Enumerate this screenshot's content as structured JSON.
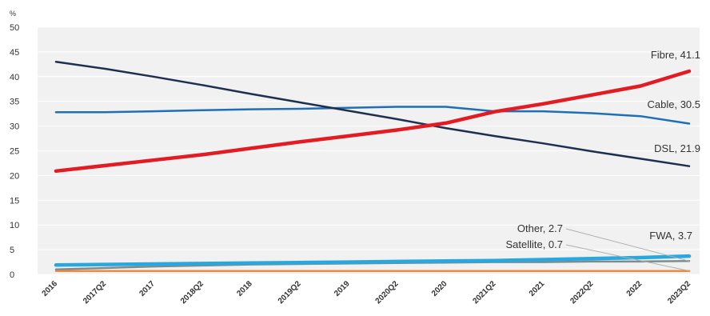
{
  "chart_data": {
    "type": "line",
    "title": "",
    "xlabel": "",
    "ylabel": "%",
    "ylim": [
      0,
      50
    ],
    "yticks": [
      "0",
      "5",
      "10",
      "15",
      "20",
      "25",
      "30",
      "35",
      "40",
      "45",
      "50"
    ],
    "categories": [
      "2016",
      "2017Q2",
      "2017",
      "2018Q2",
      "2018",
      "2019Q2",
      "2019",
      "2020Q2",
      "2020",
      "2021Q2",
      "2021",
      "2022Q2",
      "2022",
      "2023Q2"
    ],
    "grid": true,
    "legend": "end-of-line labels",
    "series": [
      {
        "name": "DSL",
        "end_label": "DSL, 21.9",
        "color": "#1f2f4f",
        "values": [
          43.0,
          41.6,
          40.0,
          38.3,
          36.5,
          34.8,
          33.1,
          31.4,
          29.6,
          28.0,
          26.5,
          24.9,
          23.4,
          21.9
        ]
      },
      {
        "name": "Cable",
        "end_label": "Cable, 30.5",
        "color": "#1e6fb5",
        "values": [
          32.8,
          32.8,
          33.0,
          33.2,
          33.4,
          33.5,
          33.7,
          33.9,
          33.9,
          33.0,
          33.0,
          32.6,
          32.0,
          30.5
        ]
      },
      {
        "name": "Fibre",
        "end_label": "Fibre, 41.1",
        "color": "#e31b23",
        "values": [
          20.9,
          22.0,
          23.1,
          24.2,
          25.5,
          26.8,
          28.0,
          29.2,
          30.6,
          32.9,
          34.5,
          36.3,
          38.1,
          41.1
        ]
      },
      {
        "name": "FWA",
        "end_label": "FWA, 3.7",
        "color": "#29a8e0",
        "values": [
          1.9,
          2.0,
          2.1,
          2.2,
          2.3,
          2.4,
          2.5,
          2.6,
          2.7,
          2.8,
          3.0,
          3.2,
          3.4,
          3.7
        ]
      },
      {
        "name": "Other",
        "end_label": "Other, 2.7",
        "color": "#7f8c8d",
        "values": [
          1.0,
          1.3,
          1.6,
          1.8,
          2.0,
          2.1,
          2.2,
          2.3,
          2.4,
          2.5,
          2.5,
          2.6,
          2.6,
          2.7
        ]
      },
      {
        "name": "Satellite",
        "end_label": "Satellite, 0.7",
        "color": "#f08a3c",
        "values": [
          0.7,
          0.7,
          0.7,
          0.7,
          0.7,
          0.7,
          0.7,
          0.7,
          0.7,
          0.7,
          0.7,
          0.7,
          0.7,
          0.7
        ]
      }
    ],
    "colors": {
      "plot_background": "#f1f1f1",
      "gridline": "#ffffff"
    }
  }
}
